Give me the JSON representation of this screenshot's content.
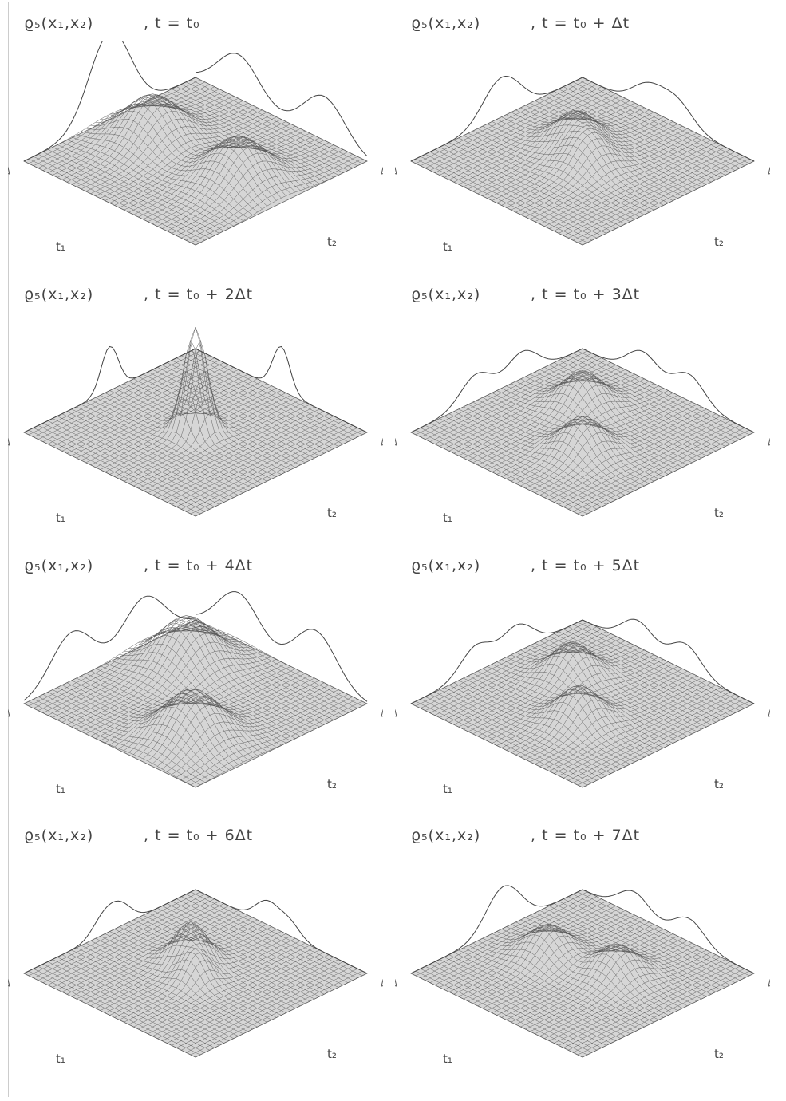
{
  "panels": [
    {
      "density_label": "ϱ₅(x₁,x₂)",
      "time_label": ", t = t₀",
      "x1_label": "t₁",
      "x2_label": "t₂",
      "peaks": [
        {
          "u": 0.25,
          "v": 0.5,
          "h": 1.0,
          "w": 0.12
        },
        {
          "u": 0.75,
          "v": 0.5,
          "h": 1.0,
          "w": 0.12
        }
      ]
    },
    {
      "density_label": "ϱ₅(x₁,x₂)",
      "time_label": ", t = t₀ + Δt",
      "x1_label": "t₁",
      "x2_label": "t₂",
      "peaks": [
        {
          "u": 0.38,
          "v": 0.42,
          "h": 0.7,
          "w": 0.09
        },
        {
          "u": 0.55,
          "v": 0.52,
          "h": 0.7,
          "w": 0.09
        }
      ]
    },
    {
      "density_label": "ϱ₅(x₁,x₂)",
      "time_label": ", t = t₀ + 2Δt",
      "x1_label": "t₁",
      "x2_label": "t₂",
      "peaks": [
        {
          "u": 0.5,
          "v": 0.5,
          "h": 2.4,
          "w": 0.05
        }
      ]
    },
    {
      "density_label": "ϱ₅(x₁,x₂)",
      "time_label": ", t = t₀ + 3Δt",
      "x1_label": "t₁",
      "x2_label": "t₂",
      "peaks": [
        {
          "u": 0.35,
          "v": 0.35,
          "h": 0.8,
          "w": 0.09
        },
        {
          "u": 0.62,
          "v": 0.62,
          "h": 0.8,
          "w": 0.09
        }
      ]
    },
    {
      "density_label": "ϱ₅(x₁,x₂)",
      "time_label": ", t = t₀ + 4Δt",
      "x1_label": "t₁",
      "x2_label": "t₂",
      "peaks": [
        {
          "u": 0.25,
          "v": 0.3,
          "h": 1.1,
          "w": 0.12
        },
        {
          "u": 0.7,
          "v": 0.72,
          "h": 1.1,
          "w": 0.12
        }
      ]
    },
    {
      "density_label": "ϱ₅(x₁,x₂)",
      "time_label": ", t = t₀ + 5Δt",
      "x1_label": "t₁",
      "x2_label": "t₂",
      "peaks": [
        {
          "u": 0.32,
          "v": 0.38,
          "h": 0.8,
          "w": 0.09
        },
        {
          "u": 0.6,
          "v": 0.62,
          "h": 0.8,
          "w": 0.09
        }
      ]
    },
    {
      "density_label": "ϱ₅(x₁,x₂)",
      "time_label": ", t = t₀ + 6Δt",
      "x1_label": "t₁",
      "x2_label": "t₂",
      "peaks": [
        {
          "u": 0.42,
          "v": 0.45,
          "h": 0.9,
          "w": 0.07
        },
        {
          "u": 0.55,
          "v": 0.55,
          "h": 0.6,
          "w": 0.06
        }
      ]
    },
    {
      "density_label": "ϱ₅(x₁,x₂)",
      "time_label": ", t = t₀ + 7Δt",
      "x1_label": "t₁",
      "x2_label": "t₂",
      "peaks": [
        {
          "u": 0.3,
          "v": 0.5,
          "h": 0.7,
          "w": 0.09
        },
        {
          "u": 0.62,
          "v": 0.42,
          "h": 0.7,
          "w": 0.09
        }
      ]
    }
  ]
}
